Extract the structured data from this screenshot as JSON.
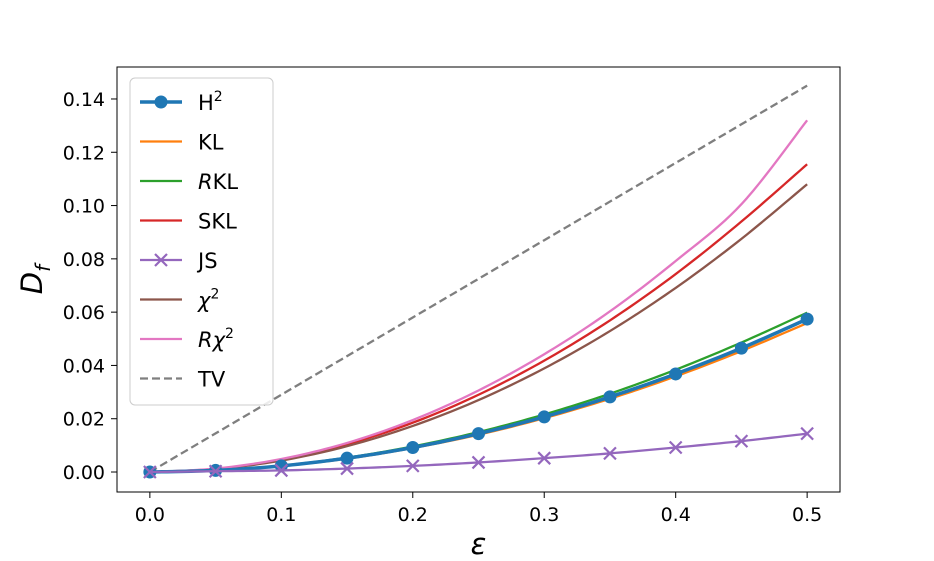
{
  "chart_data": {
    "type": "line",
    "title": "",
    "xlabel": "ε",
    "ylabel": "D",
    "ylabel_subscript": "f",
    "xlim": [
      -0.025,
      0.525
    ],
    "ylim": [
      -0.0075,
      0.152
    ],
    "xticks": [
      0.0,
      0.1,
      0.2,
      0.3,
      0.4,
      0.5
    ],
    "xtick_labels": [
      "0.0",
      "0.1",
      "0.2",
      "0.3",
      "0.4",
      "0.5"
    ],
    "yticks": [
      0.0,
      0.02,
      0.04,
      0.06,
      0.08,
      0.1,
      0.12,
      0.14
    ],
    "ytick_labels": [
      "0.00",
      "0.02",
      "0.04",
      "0.06",
      "0.08",
      "0.10",
      "0.12",
      "0.14"
    ],
    "grid": false,
    "legend_position": "top-left",
    "x": [
      0.0,
      0.05,
      0.1,
      0.15,
      0.2,
      0.25,
      0.3,
      0.35,
      0.4,
      0.45,
      0.5
    ],
    "series": [
      {
        "name": "H²",
        "label_main": "H",
        "label_sup": "2",
        "color": "#1f77b4",
        "style": "solid",
        "marker": "circle",
        "width": 3.5,
        "values": [
          0.0,
          0.0006,
          0.0023,
          0.0052,
          0.0092,
          0.0144,
          0.0207,
          0.0282,
          0.0368,
          0.0465,
          0.0574
        ]
      },
      {
        "name": "KL",
        "label_main": "KL",
        "color": "#ff7f0e",
        "style": "solid",
        "width": 2.3,
        "values": [
          0.0,
          0.0006,
          0.0023,
          0.005,
          0.009,
          0.014,
          0.0202,
          0.0275,
          0.0359,
          0.0454,
          0.0559
        ]
      },
      {
        "name": "RKL",
        "label_italic": "R",
        "label_main": "KL",
        "color": "#2ca02c",
        "style": "solid",
        "width": 2.3,
        "values": [
          0.0,
          0.0006,
          0.0024,
          0.0054,
          0.0096,
          0.015,
          0.0216,
          0.0294,
          0.0384,
          0.0486,
          0.0598
        ]
      },
      {
        "name": "SKL",
        "label_main": "SKL",
        "color": "#d62728",
        "style": "solid",
        "width": 2.3,
        "values": [
          0.0,
          0.0012,
          0.0046,
          0.0104,
          0.0185,
          0.029,
          0.0418,
          0.0569,
          0.0743,
          0.094,
          0.1155
        ]
      },
      {
        "name": "JS",
        "label_main": "JS",
        "color": "#9467bd",
        "style": "solid",
        "marker": "x",
        "width": 2.3,
        "values": [
          0.0,
          0.0003,
          0.0006,
          0.0013,
          0.0023,
          0.0036,
          0.0052,
          0.007,
          0.0092,
          0.0116,
          0.0144
        ]
      },
      {
        "name": "χ²",
        "label_italic": "χ",
        "label_sup": "2",
        "color": "#8c564b",
        "style": "solid",
        "width": 2.3,
        "values": [
          0.0,
          0.0011,
          0.0043,
          0.0097,
          0.0173,
          0.027,
          0.0389,
          0.0529,
          0.0691,
          0.0875,
          0.108
        ]
      },
      {
        "name": "Rχ²",
        "label_italic": "Rχ",
        "label_sup": "2",
        "color": "#e377c2",
        "style": "solid",
        "width": 2.3,
        "values": [
          0.0,
          0.0013,
          0.0049,
          0.0109,
          0.0195,
          0.0306,
          0.0442,
          0.0603,
          0.0792,
          0.1005,
          0.132
        ]
      },
      {
        "name": "TV",
        "label_main": "TV",
        "color": "#7f7f7f",
        "style": "dashed",
        "width": 2.3,
        "values": [
          0.0,
          0.0145,
          0.029,
          0.0435,
          0.058,
          0.0725,
          0.087,
          0.1015,
          0.116,
          0.1305,
          0.145
        ]
      }
    ]
  }
}
